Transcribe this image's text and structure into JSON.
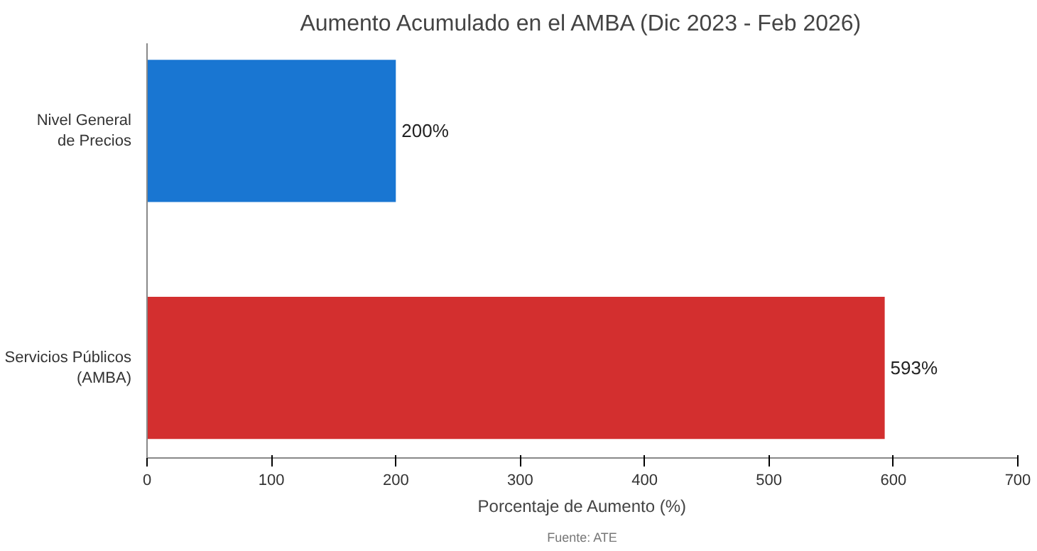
{
  "chart_data": {
    "type": "bar",
    "orientation": "horizontal",
    "title": "Aumento Acumulado en el AMBA (Dic 2023 - Feb 2026)",
    "categories": [
      "Nivel General\nde Precios",
      "Servicios Públicos\n(AMBA)"
    ],
    "values": [
      200,
      593
    ],
    "colors": [
      "#1976d2",
      "#d32f2f"
    ],
    "value_labels": [
      "200%",
      "593%"
    ],
    "xlabel": "Porcentaje de Aumento (%)",
    "xlim": [
      0,
      700
    ],
    "xticks": [
      0,
      100,
      200,
      300,
      400,
      500,
      600,
      700
    ],
    "grid": false,
    "annotations": [
      "Fuente: ATE"
    ]
  }
}
